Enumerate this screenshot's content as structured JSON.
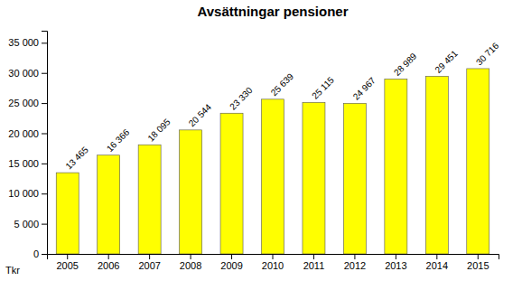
{
  "chart_data": {
    "type": "bar",
    "title": "Avsättningar pensioner",
    "categories": [
      "2005",
      "2006",
      "2007",
      "2008",
      "2009",
      "2010",
      "2011",
      "2012",
      "2013",
      "2014",
      "2015"
    ],
    "values": [
      13465,
      16366,
      18095,
      20544,
      23330,
      25639,
      25115,
      24967,
      28989,
      29451,
      30716
    ],
    "value_labels": [
      "13 465",
      "16 366",
      "18 095",
      "20 544",
      "23 330",
      "25 639",
      "25 115",
      "24 967",
      "28 989",
      "29 451",
      "30 716"
    ],
    "data_labels": true,
    "color": "#FFFF00",
    "ylim": [
      0,
      37000
    ],
    "yticks": [
      0,
      {
        "value": 5000,
        "label": "5 000"
      },
      {
        "value": 10000,
        "label": "10 000"
      },
      {
        "value": 15000,
        "label": "15 000"
      },
      {
        "value": 20000,
        "label": "20 000"
      },
      {
        "value": 25000,
        "label": "25 000"
      },
      {
        "value": 30000,
        "label": "30 000"
      },
      {
        "value": 35000,
        "label": "35 000"
      }
    ],
    "grid": false,
    "annotations": [
      "Tkr"
    ]
  }
}
